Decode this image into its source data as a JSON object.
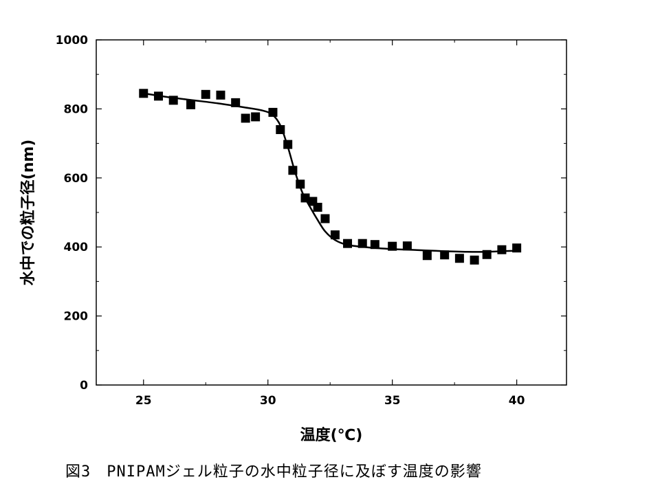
{
  "chart_data": {
    "type": "scatter",
    "xlabel": "温度(℃)",
    "ylabel": "水中での粒子径(nm)",
    "xlim": [
      23.1,
      42.0
    ],
    "ylim": [
      0,
      1000
    ],
    "xticks": [
      25,
      30,
      35,
      40
    ],
    "yticks": [
      0,
      200,
      400,
      600,
      800,
      1000
    ],
    "xtick_labels": [
      "25",
      "30",
      "35",
      "40"
    ],
    "ytick_labels": [
      "0",
      "200",
      "400",
      "600",
      "800",
      "1000"
    ],
    "grid": false,
    "legend": "none",
    "colors": {
      "marker": "#000000",
      "curve": "#000000"
    },
    "series": [
      {
        "type": "scatter",
        "marker": "square",
        "points": [
          [
            25.0,
            845
          ],
          [
            25.6,
            837
          ],
          [
            26.2,
            825
          ],
          [
            26.9,
            812
          ],
          [
            27.5,
            842
          ],
          [
            28.1,
            840
          ],
          [
            28.7,
            818
          ],
          [
            29.1,
            773
          ],
          [
            29.5,
            777
          ],
          [
            30.2,
            790
          ],
          [
            30.5,
            740
          ],
          [
            30.8,
            697
          ],
          [
            31.0,
            622
          ],
          [
            31.3,
            582
          ],
          [
            31.5,
            542
          ],
          [
            31.8,
            532
          ],
          [
            32.0,
            515
          ],
          [
            32.3,
            482
          ],
          [
            32.7,
            435
          ],
          [
            33.2,
            410
          ],
          [
            33.8,
            410
          ],
          [
            34.3,
            407
          ],
          [
            35.0,
            402
          ],
          [
            35.6,
            403
          ],
          [
            36.4,
            375
          ],
          [
            37.1,
            377
          ],
          [
            37.7,
            367
          ],
          [
            38.3,
            362
          ],
          [
            38.8,
            378
          ],
          [
            39.4,
            392
          ],
          [
            40.0,
            397
          ]
        ]
      },
      {
        "type": "line",
        "smooth": true,
        "points": [
          [
            25.0,
            845
          ],
          [
            26.0,
            834
          ],
          [
            27.0,
            825
          ],
          [
            28.0,
            816
          ],
          [
            29.0,
            805
          ],
          [
            29.8,
            795
          ],
          [
            30.2,
            782
          ],
          [
            30.5,
            752
          ],
          [
            30.8,
            690
          ],
          [
            31.1,
            615
          ],
          [
            31.4,
            555
          ],
          [
            31.7,
            515
          ],
          [
            32.0,
            478
          ],
          [
            32.3,
            445
          ],
          [
            32.7,
            420
          ],
          [
            33.2,
            406
          ],
          [
            34.0,
            399
          ],
          [
            35.0,
            394
          ],
          [
            36.0,
            391
          ],
          [
            37.0,
            388
          ],
          [
            38.0,
            386
          ],
          [
            38.8,
            386
          ],
          [
            39.5,
            388
          ],
          [
            40.0,
            389
          ]
        ]
      }
    ]
  },
  "caption": "図3　PNIPAMジェル粒子の水中粒子径に及ぼす温度の影響"
}
